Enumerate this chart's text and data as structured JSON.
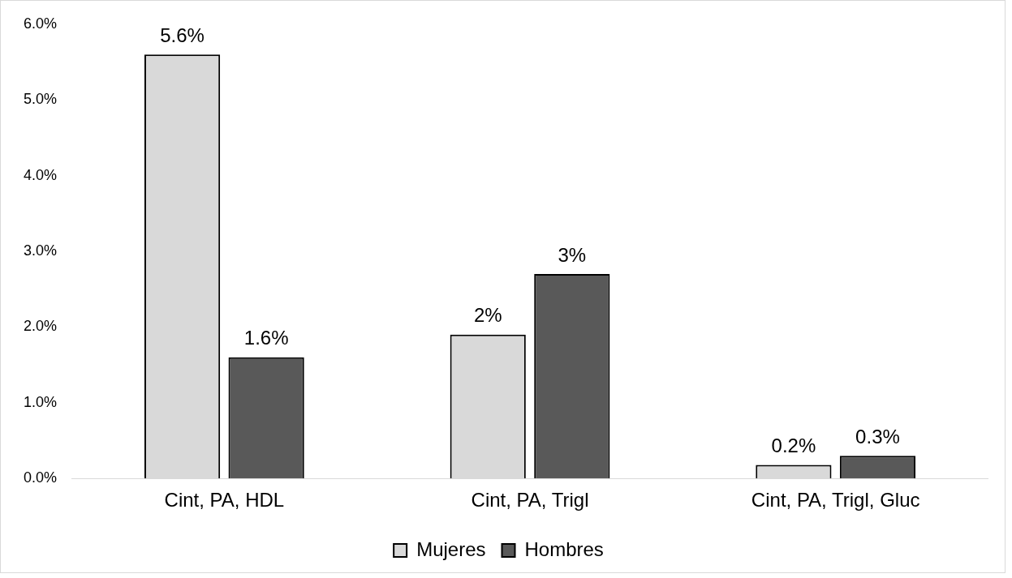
{
  "chart_data": {
    "type": "bar",
    "categories": [
      "Cint, PA, HDL",
      "Cint, PA, Trigl",
      "Cint, PA, Trigl, Gluc"
    ],
    "series": [
      {
        "name": "Mujeres",
        "color": "#d9d9d9",
        "values": [
          5.6,
          1.9,
          0.18
        ],
        "value_labels": [
          "5.6%",
          "2%",
          "0.2%"
        ]
      },
      {
        "name": "Hombres",
        "color": "#595959",
        "values": [
          1.6,
          2.7,
          0.3
        ],
        "value_labels": [
          "1.6%",
          "3%",
          "0.3%"
        ]
      }
    ],
    "ylim": [
      0,
      6
    ],
    "yticks": [
      {
        "value": 0,
        "label": "0.0%"
      },
      {
        "value": 1,
        "label": "1.0%"
      },
      {
        "value": 2,
        "label": "2.0%"
      },
      {
        "value": 3,
        "label": "3.0%"
      },
      {
        "value": 4,
        "label": "4.0%"
      },
      {
        "value": 5,
        "label": "5.0%"
      },
      {
        "value": 6,
        "label": "6.0%"
      }
    ],
    "grid": false,
    "legend": "bottom"
  }
}
